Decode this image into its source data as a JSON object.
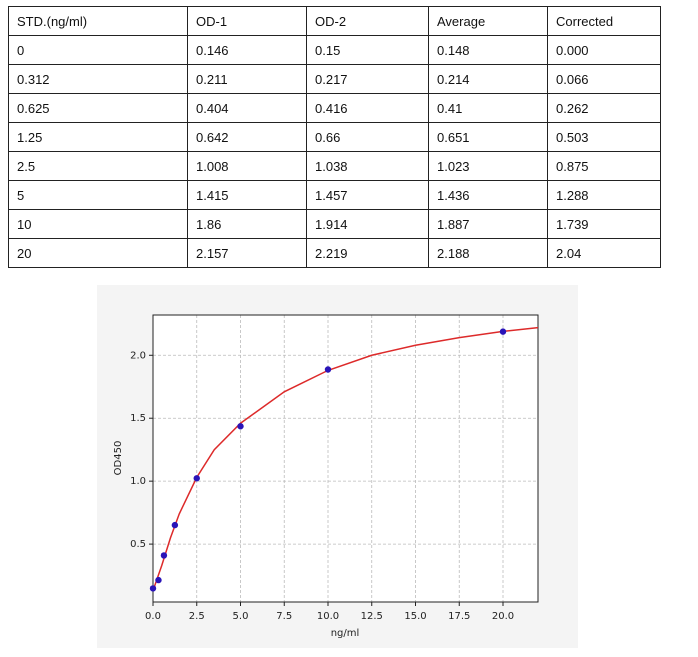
{
  "table": {
    "header": [
      "STD.(ng/ml)",
      "OD-1",
      "OD-2",
      "Average",
      "Corrected"
    ],
    "rows": [
      [
        "0",
        "0.146",
        "0.15",
        "0.148",
        "0.000"
      ],
      [
        "0.312",
        "0.211",
        "0.217",
        "0.214",
        "0.066"
      ],
      [
        "0.625",
        "0.404",
        "0.416",
        "0.41",
        "0.262"
      ],
      [
        "1.25",
        "0.642",
        "0.66",
        "0.651",
        "0.503"
      ],
      [
        "2.5",
        "1.008",
        "1.038",
        "1.023",
        "0.875"
      ],
      [
        "5",
        "1.415",
        "1.457",
        "1.436",
        "1.288"
      ],
      [
        "10",
        "1.86",
        "1.914",
        "1.887",
        "1.739"
      ],
      [
        "20",
        "2.157",
        "2.219",
        "2.188",
        "2.04"
      ]
    ]
  },
  "chart_data": {
    "type": "scatter",
    "xlabel": "ng/ml",
    "ylabel": "OD450",
    "xlim": [
      0,
      22
    ],
    "ylim": [
      0.04,
      2.32
    ],
    "xticks": [
      {
        "value": 0,
        "label": "0.0"
      },
      2.5,
      {
        "value": 5,
        "label": "5.0"
      },
      7.5,
      {
        "value": 10,
        "label": "10.0"
      },
      12.5,
      {
        "value": 15,
        "label": "15.0"
      },
      17.5,
      {
        "value": 20,
        "label": "20.0"
      }
    ],
    "yticks": [
      0.5,
      {
        "value": 1,
        "label": "1.0"
      },
      {
        "value": 1.5,
        "label": "1.5"
      },
      {
        "value": 2,
        "label": "2.0"
      }
    ],
    "grid": true,
    "series": [
      {
        "kind": "line",
        "color": "#dd2a2a",
        "x": [
          0,
          0.5,
          1,
          1.5,
          2.5,
          3.5,
          5,
          7.5,
          10,
          12.5,
          15,
          17.5,
          20,
          22
        ],
        "values": [
          0.13,
          0.33,
          0.55,
          0.74,
          1.03,
          1.25,
          1.46,
          1.71,
          1.88,
          2.0,
          2.08,
          2.14,
          2.19,
          2.22
        ]
      },
      {
        "kind": "points",
        "color": "#2a14b8",
        "x": [
          0,
          0.312,
          0.625,
          1.25,
          2.5,
          5,
          10,
          20
        ],
        "values": [
          0.148,
          0.214,
          0.41,
          0.651,
          1.023,
          1.436,
          1.887,
          2.188
        ]
      }
    ]
  }
}
